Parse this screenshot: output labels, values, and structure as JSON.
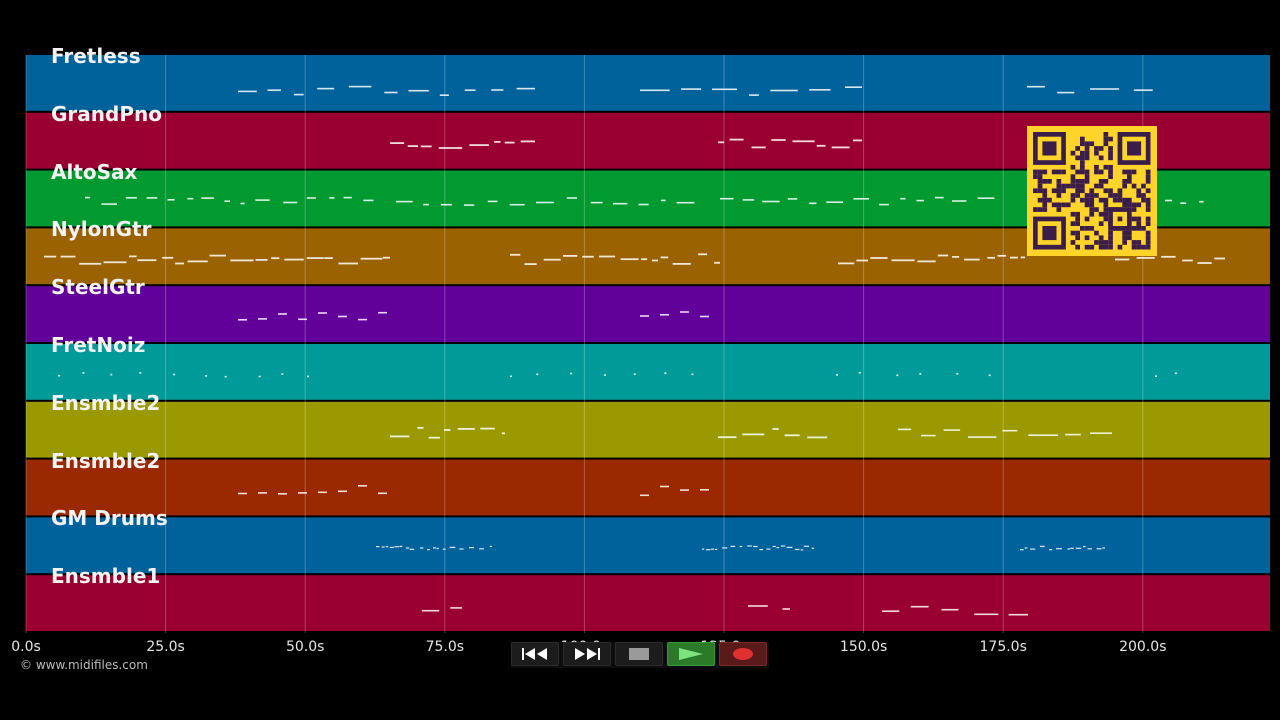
{
  "tracks": [
    {
      "name": "Fretless",
      "color": "#00629a"
    },
    {
      "name": "GrandPno",
      "color": "#990031"
    },
    {
      "name": "AltoSax",
      "color": "#009a30"
    },
    {
      "name": "NylonGtr",
      "color": "#9a6200"
    },
    {
      "name": "SteelGtr",
      "color": "#62009a"
    },
    {
      "name": "FretNoiz",
      "color": "#009a98"
    },
    {
      "name": "Ensmble2",
      "color": "#9a9a00"
    },
    {
      "name": "Ensmble2",
      "color": "#9a2800"
    },
    {
      "name": "GM Drums",
      "color": "#00629a"
    },
    {
      "name": "Ensmble1",
      "color": "#990031"
    }
  ],
  "time_axis": {
    "ticks": [
      "0.0s",
      "25.0s",
      "50.0s",
      "75.0s",
      "100.0s",
      "125.0s",
      "150.0s",
      "175.0s",
      "200.0s"
    ]
  },
  "copyright": "© www.midifiles.com",
  "transport": {
    "buttons": [
      {
        "name": "rewind-button",
        "icon": "rewind-icon"
      },
      {
        "name": "fast-forward-button",
        "icon": "fast-forward-icon"
      },
      {
        "name": "stop-button",
        "icon": "stop-icon"
      },
      {
        "name": "play-button",
        "icon": "play-icon"
      },
      {
        "name": "record-button",
        "icon": "record-icon"
      }
    ]
  },
  "colors": {
    "background": "#000000",
    "qr_background": "#ffd42a",
    "qr_foreground": "#3b1d4a",
    "note": "#ffffff"
  }
}
